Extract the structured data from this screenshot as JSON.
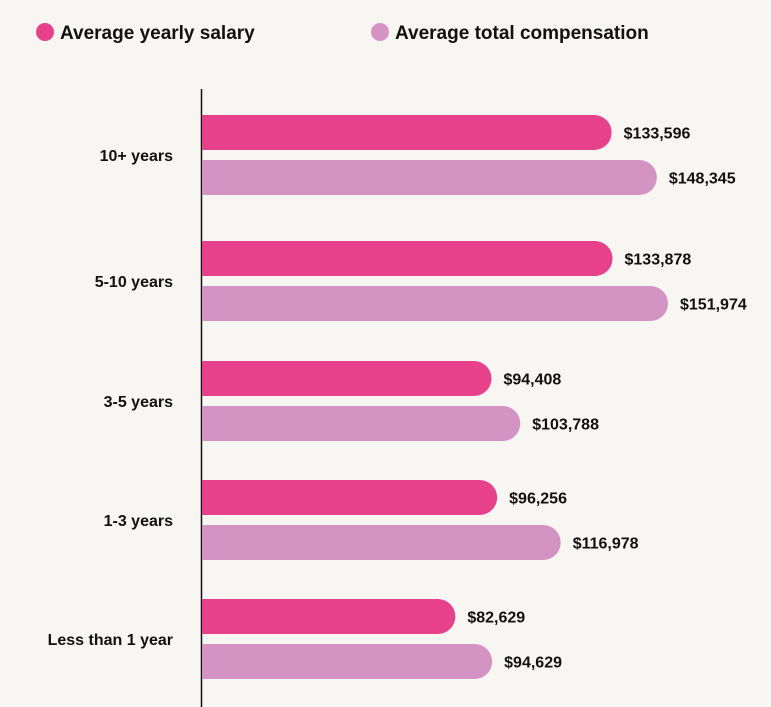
{
  "chart_data": {
    "type": "bar",
    "orientation": "horizontal",
    "categories": [
      "10+ years",
      "5-10 years",
      "3-5 years",
      "1-3 years",
      "Less than 1 year"
    ],
    "series": [
      {
        "name": "Average yearly salary",
        "color": "#e8418c",
        "values": [
          133596,
          133878,
          94408,
          96256,
          82629
        ],
        "labels": [
          "$133,596",
          "$133,878",
          "$94,408",
          "$96,256",
          "$82,629"
        ]
      },
      {
        "name": "Average total compensation",
        "color": "#d394c4",
        "values": [
          148345,
          151974,
          103788,
          116978,
          94629
        ],
        "labels": [
          "$148,345",
          "$151,974",
          "$103,788",
          "$116,978",
          "$94,629"
        ]
      }
    ],
    "xlim": [
      0,
      151974
    ],
    "legend_position": "top-left",
    "grid": false,
    "xlabel": "",
    "ylabel": ""
  }
}
